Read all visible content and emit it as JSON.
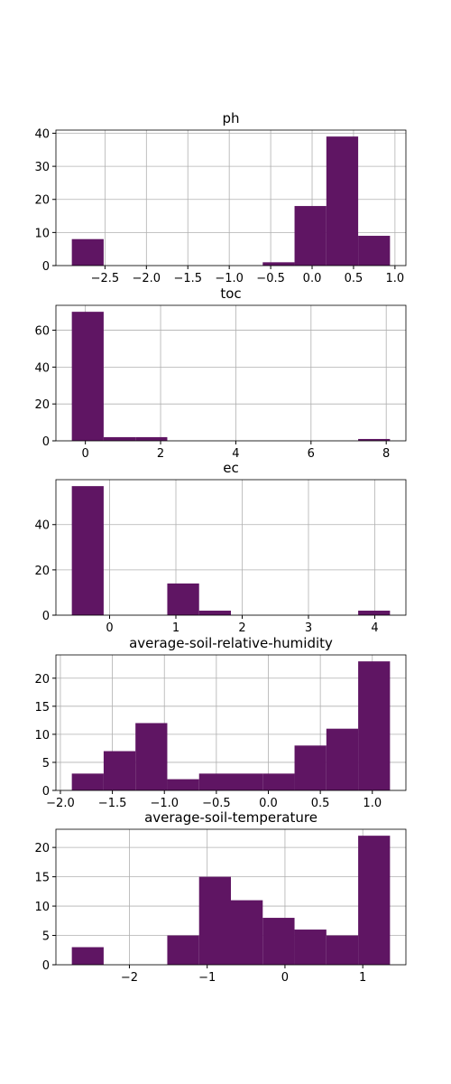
{
  "chart_data": [
    {
      "type": "histogram",
      "title": "ph",
      "color": "#5f1563",
      "grid": true,
      "bins": [
        -2.9,
        -2.516,
        -2.132,
        -1.748,
        -1.364,
        -0.98,
        -0.596,
        -0.212,
        0.172,
        0.556,
        0.94
      ],
      "values": [
        8,
        0,
        0,
        0,
        0,
        0,
        1,
        18,
        39,
        9
      ],
      "xlim": [
        -3.092,
        1.132
      ],
      "ylim": [
        0,
        40.95
      ],
      "xticks": [
        {
          "value": -2.5,
          "label": "−2.5"
        },
        {
          "value": -2.0,
          "label": "−2.0"
        },
        {
          "value": -1.5,
          "label": "−1.5"
        },
        {
          "value": -1.0,
          "label": "−1.0"
        },
        {
          "value": -0.5,
          "label": "−0.5"
        },
        {
          "value": 0,
          "label": "0.0"
        },
        0.5,
        {
          "value": 1,
          "label": "1.0"
        }
      ],
      "yticks": [
        0,
        10,
        20,
        30,
        40
      ]
    },
    {
      "type": "histogram",
      "title": "toc",
      "color": "#5f1563",
      "grid": true,
      "bins": [
        -0.36,
        0.486,
        1.332,
        2.178,
        3.024,
        3.87,
        4.716,
        5.562,
        6.408,
        7.254,
        8.1
      ],
      "values": [
        70,
        2,
        2,
        0,
        0,
        0,
        0,
        0,
        0,
        1
      ],
      "xlim": [
        -0.783,
        8.523
      ],
      "ylim": [
        0,
        73.5
      ],
      "xticks": [
        0,
        2,
        4,
        6,
        8
      ],
      "yticks": [
        0,
        20,
        40,
        60
      ]
    },
    {
      "type": "histogram",
      "title": "ec",
      "color": "#5f1563",
      "grid": true,
      "bins": [
        -0.57,
        -0.09,
        0.39,
        0.87,
        1.35,
        1.83,
        2.31,
        2.79,
        3.27,
        3.75,
        4.23
      ],
      "values": [
        57,
        0,
        0,
        14,
        2,
        0,
        0,
        0,
        0,
        2
      ],
      "xlim": [
        -0.81,
        4.47
      ],
      "ylim": [
        0,
        59.85
      ],
      "xticks": [
        0,
        1,
        2,
        3,
        4
      ],
      "yticks": [
        0,
        20,
        40
      ]
    },
    {
      "type": "histogram",
      "title": "average-soil-relative-humidity",
      "color": "#5f1563",
      "grid": true,
      "bins": [
        -1.89,
        -1.584,
        -1.278,
        -0.972,
        -0.666,
        -0.36,
        -0.054,
        0.252,
        0.558,
        0.864,
        1.17
      ],
      "values": [
        3,
        7,
        12,
        2,
        3,
        3,
        3,
        8,
        11,
        23
      ],
      "xlim": [
        -2.043,
        1.323
      ],
      "ylim": [
        0,
        24.15
      ],
      "xticks": [
        {
          "value": -2.0,
          "label": "−2.0"
        },
        {
          "value": -1.5,
          "label": "−1.5"
        },
        {
          "value": -1.0,
          "label": "−1.0"
        },
        {
          "value": -0.5,
          "label": "−0.5"
        },
        {
          "value": 0,
          "label": "0.0"
        },
        0.5,
        {
          "value": 1,
          "label": "1.0"
        }
      ],
      "yticks": [
        0,
        5,
        10,
        15,
        20
      ]
    },
    {
      "type": "histogram",
      "title": "average-soil-temperature",
      "color": "#5f1563",
      "grid": true,
      "bins": [
        -2.74,
        -2.331,
        -1.922,
        -1.513,
        -1.104,
        -0.695,
        -0.286,
        0.123,
        0.532,
        0.941,
        1.35
      ],
      "values": [
        3,
        0,
        0,
        5,
        15,
        11,
        8,
        6,
        5,
        22
      ],
      "xlim": [
        -2.9445,
        1.5545
      ],
      "ylim": [
        0,
        23.1
      ],
      "xticks": [
        {
          "value": -2,
          "label": "−2"
        },
        {
          "value": -1,
          "label": "−1"
        },
        0,
        1
      ],
      "yticks": [
        0,
        5,
        10,
        15,
        20
      ]
    }
  ]
}
